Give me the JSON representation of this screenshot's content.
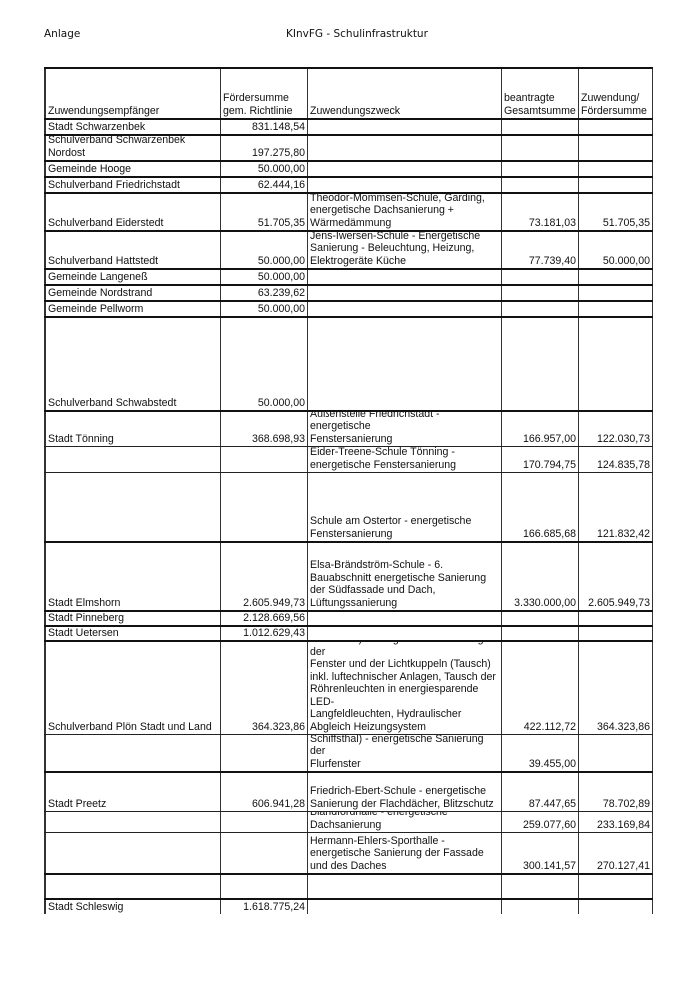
{
  "page_header": {
    "left": "Anlage",
    "title": "KInvFG - Schulinfrastruktur"
  },
  "table": {
    "columns": [
      "Zuwendungsempfänger",
      "Fördersumme\ngem. Richtlinie",
      "Zuwendungszweck",
      "beantragte\nGesamtsumme",
      "Zuwendung/\nFördersumme"
    ],
    "rows": [
      [
        "Stadt Schwarzenbek",
        "831.148,54",
        "",
        "",
        ""
      ],
      [
        "Schulverband Schwarzenbek\nNordost",
        "197.275,80",
        "",
        "",
        ""
      ],
      [
        "Gemeinde Hooge",
        "50.000,00",
        "",
        "",
        ""
      ],
      [
        "Schulverband Friedrichstadt",
        "62.444,16",
        "",
        "",
        ""
      ],
      [
        "Schulverband Eiderstedt",
        "51.705,35",
        "Theodor-Mommsen-Schule, Garding,\nenergetische Dachsanierung +\nWärmedämmung",
        "73.181,03",
        "51.705,35"
      ],
      [
        "Schulverband Hattstedt",
        "50.000,00",
        "Jens-Iwersen-Schule - Energetische\nSanierung - Beleuchtung, Heizung,\nElektrogeräte Küche",
        "77.739,40",
        "50.000,00"
      ],
      [
        "Gemeinde Langeneß",
        "50.000,00",
        "",
        "",
        ""
      ],
      [
        "Gemeinde Nordstrand",
        "63.239,62",
        "",
        "",
        ""
      ],
      [
        "Gemeinde Pellworm",
        "50.000,00",
        "",
        "",
        ""
      ],
      [
        "Schulverband Schwabstedt",
        "50.000,00",
        "",
        "",
        ""
      ],
      [
        "Stadt Tönning",
        "368.698,93",
        "Eider-Treene-Schule Tönning,\nAußenstelle Friedrichstadt - energetische\nFenstersanierung",
        "166.957,00",
        "122.030,73"
      ],
      [
        "",
        "",
        "Eider-Treene-Schule Tönning -\nenergetische Fenstersanierung",
        "170.794,75",
        "124.835,78"
      ],
      [
        "",
        "",
        "Schule am Ostertor - energetische\nFenstersanierung",
        "166.685,68",
        "121.832,42"
      ],
      [
        "Stadt Elmshorn",
        "2.605.949,73",
        "Elsa-Brändström-Schule - 6.\nBauabschnitt energetische Sanierung\nder Südfassade und Dach,\nLüftungssanierung",
        "3.330.000,00",
        "2.605.949,73"
      ],
      [
        "Stadt Pinneberg",
        "2.128.669,56",
        "",
        "",
        ""
      ],
      [
        "Stadt Uetersen",
        "1.012.629,43",
        "",
        "",
        ""
      ],
      [
        "Schulverband Plön Stadt und Land",
        "364.323,86",
        "Gemeinschaftsschule Plön (Schule Am\nSchiffsthal) - energetische Sanierung der\nFenster und der Lichtkuppeln (Tausch)\ninkl. luftechnischer Anlagen, Tausch der\nRöhrenleuchten in energiesparende LED-\nLangfeldleuchten, Hydraulischer\nAbgleich Heizungsystem",
        "422.112,72",
        "364.323,86"
      ],
      [
        "",
        "",
        "Gemeinschaftsschule Plön (Schule Am\nSchiffsthal) - energetische Sanierung der\nFlurfenster",
        "39.455,00",
        ""
      ],
      [
        "Stadt Preetz",
        "606.941,28",
        "Friedrich-Ebert-Schule - energetische\nSanierung der Flachdächer, Blitzschutz",
        "87.447,65",
        "78.702,89"
      ],
      [
        "",
        "",
        "Blandfordhalle - energetische\nDachsanierung",
        "259.077,60",
        "233.169,84"
      ],
      [
        "",
        "",
        "Hermann-Ehlers-Sporthalle -\nenergetische Sanierung der Fassade\nund des Daches",
        "300.141,57",
        "270.127,41"
      ],
      [
        "",
        "",
        "",
        "",
        ""
      ],
      [
        "Stadt Schleswig",
        "1.618.775,24",
        "",
        "",
        ""
      ]
    ]
  }
}
